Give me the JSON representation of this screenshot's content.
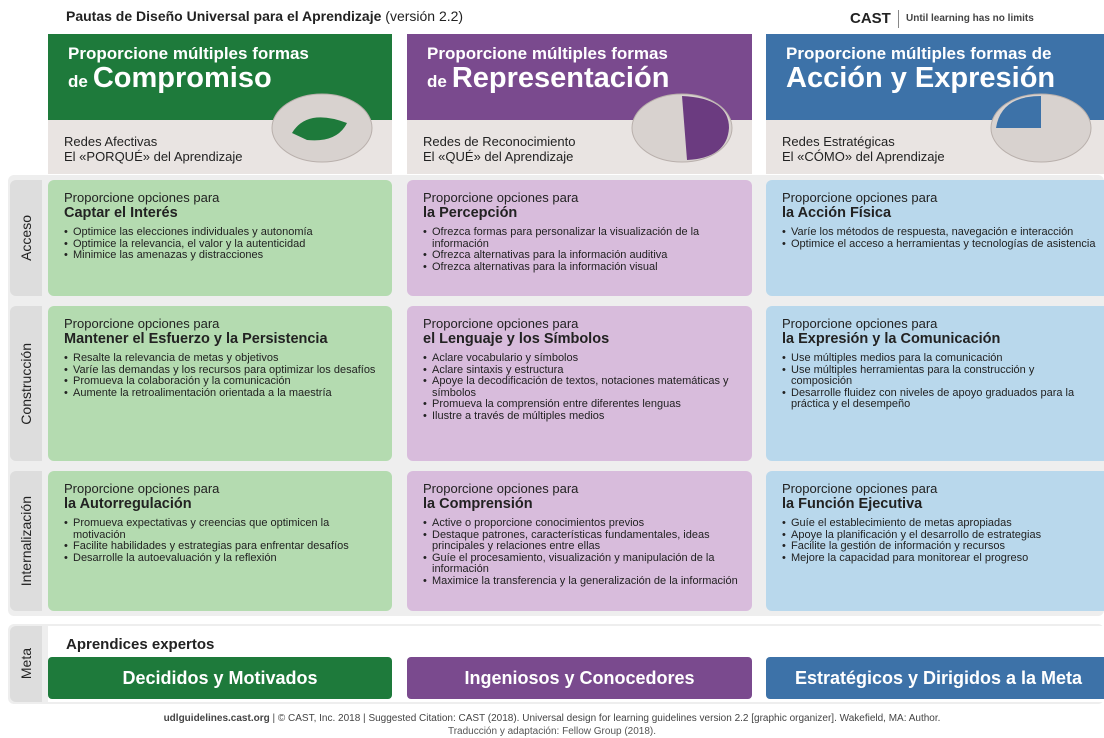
{
  "header": {
    "title": "Pautas de Diseño Universal para el Aprendizaje",
    "version": "(versión 2.2)",
    "brand": "CAST",
    "tagline": "Until learning has no limits"
  },
  "columns": [
    {
      "heading_top": "Proporcione múltiples formas",
      "heading_prefix": "de",
      "heading_main": "Compromiso",
      "network": "Redes Afectivas",
      "why": "El «PORQUÉ» del Aprendizaje"
    },
    {
      "heading_top": "Proporcione múltiples formas",
      "heading_prefix": "de",
      "heading_main": "Representación",
      "network": "Redes de Reconocimiento",
      "why": "El «QUÉ» del Aprendizaje"
    },
    {
      "heading_top": "Proporcione múltiples formas de",
      "heading_main": "Acción y Expresión",
      "network": "Redes Estratégicas",
      "why": "El «CÓMO» del Aprendizaje"
    }
  ],
  "rows": [
    {
      "label": "Acceso",
      "cells": [
        {
          "intro": "Proporcione opciones para",
          "title": "Captar el Interés",
          "items": [
            "Optimice las elecciones individuales y autonomía",
            "Optimice la relevancia, el valor y la autenticidad",
            "Minimice las amenazas y distracciones"
          ]
        },
        {
          "intro": "Proporcione opciones para",
          "title": "la Percepción",
          "items": [
            "Ofrezca formas para personalizar la visualización de la información",
            "Ofrezca alternativas para la información auditiva",
            "Ofrezca alternativas para la información visual"
          ]
        },
        {
          "intro": "Proporcione opciones para",
          "title": "la Acción Física",
          "items": [
            "Varíe los métodos de respuesta, navegación e interacción",
            "Optimice el acceso a herramientas y tecnologías de asistencia"
          ]
        }
      ]
    },
    {
      "label": "Construcción",
      "cells": [
        {
          "intro": "Proporcione opciones para",
          "title": "Mantener el Esfuerzo y la Persistencia",
          "items": [
            "Resalte la relevancia de metas y objetivos",
            "Varíe las demandas y los recursos para optimizar los desafíos",
            "Promueva la colaboración y la comunicación",
            "Aumente la retroalimentación orientada a la maestría"
          ]
        },
        {
          "intro": "Proporcione opciones para",
          "title": "el Lenguaje y los Símbolos",
          "items": [
            "Aclare vocabulario y símbolos",
            "Aclare sintaxis y estructura",
            "Apoye la decodificación de textos, notaciones matemáticas y símbolos",
            "Promueva la comprensión entre diferentes lenguas",
            "Ilustre a través de múltiples medios"
          ]
        },
        {
          "intro": "Proporcione opciones para",
          "title": "la Expresión y la Comunicación",
          "items": [
            "Use múltiples medios para la comunicación",
            "Use múltiples herramientas para la construcción y composición",
            "Desarrolle fluidez con niveles de apoyo graduados para la práctica y el desempeño"
          ]
        }
      ]
    },
    {
      "label": "Internalización",
      "cells": [
        {
          "intro": "Proporcione opciones para",
          "title": "la Autorregulación",
          "items": [
            "Promueva expectativas y creencias que optimicen la motivación",
            "Facilite habilidades y estrategias para enfrentar desafíos",
            "Desarrolle la autoevaluación y la reflexión"
          ]
        },
        {
          "intro": "Proporcione opciones para",
          "title": "la Comprensión",
          "items": [
            "Active o proporcione conocimientos previos",
            "Destaque patrones, características fundamentales, ideas principales y relaciones entre ellas",
            "Guíe el procesamiento, visualización y manipulación de la información",
            "Maximice la transferencia y la generalización de la información"
          ]
        },
        {
          "intro": "Proporcione opciones para",
          "title": "la Función Ejecutiva",
          "items": [
            "Guíe el establecimiento de metas apropiadas",
            "Apoye la planificación y el desarrollo de estrategias",
            "Facilite la gestión de información y recursos",
            "Mejore la capacidad para monitorear el progreso"
          ]
        }
      ]
    }
  ],
  "meta": {
    "label": "Meta",
    "heading": "Aprendices expertos",
    "goals": [
      "Decididos y Motivados",
      "Ingeniosos y Conocedores",
      "Estratégicos y Dirigidos a la Meta"
    ]
  },
  "footer": {
    "site": "udlguidelines.cast.org",
    "citation": "| © CAST, Inc. 2018 | Suggested Citation: CAST (2018). Universal design for learning guidelines version 2.2 [graphic organizer]. Wakefield, MA: Author.",
    "translation": "Traducción y adaptación: Fellow Group (2018)."
  }
}
